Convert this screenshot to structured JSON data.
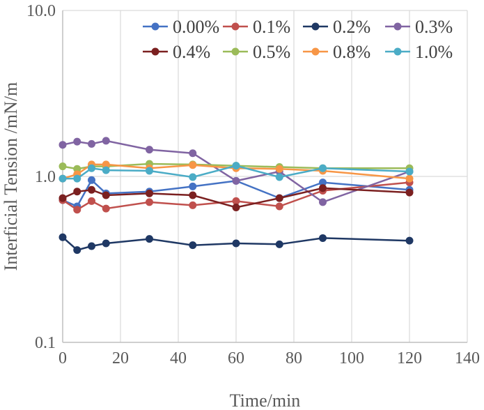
{
  "chart_data": {
    "type": "line",
    "xlabel": "Time/min",
    "ylabel": "Interficial Tension /mN/m",
    "yscale": "log",
    "xlim": [
      0,
      140
    ],
    "ylim": [
      0.1,
      10.0
    ],
    "xticks": [
      0,
      20,
      40,
      60,
      80,
      100,
      120,
      140
    ],
    "xtick_labels": [
      "0",
      "20",
      "40",
      "60",
      "80",
      "100",
      "120",
      "140"
    ],
    "yticks": [
      0.1,
      1.0,
      10.0
    ],
    "ytick_labels": [
      "0.1",
      "1.0",
      "10.0"
    ],
    "grid": "vertical",
    "legend": "top-right",
    "x": [
      0,
      5,
      10,
      15,
      30,
      45,
      60,
      75,
      90,
      120
    ],
    "series": [
      {
        "name": "0.00%",
        "color": "#4472C4",
        "values": [
          0.72,
          0.66,
          0.95,
          0.79,
          0.81,
          0.87,
          0.94,
          0.74,
          0.92,
          0.83
        ]
      },
      {
        "name": "0.1%",
        "color": "#C0504D",
        "values": [
          0.72,
          0.63,
          0.71,
          0.64,
          0.7,
          0.67,
          0.71,
          0.66,
          0.82,
          0.92
        ]
      },
      {
        "name": "0.2%",
        "color": "#1F3864",
        "values": [
          0.43,
          0.36,
          0.38,
          0.395,
          0.42,
          0.385,
          0.395,
          0.39,
          0.425,
          0.41
        ]
      },
      {
        "name": "0.3%",
        "color": "#8064A2",
        "values": [
          1.55,
          1.62,
          1.57,
          1.64,
          1.45,
          1.38,
          0.94,
          1.07,
          0.7,
          1.07
        ]
      },
      {
        "name": "0.4%",
        "color": "#7B2020",
        "values": [
          0.74,
          0.81,
          0.83,
          0.77,
          0.79,
          0.77,
          0.65,
          0.74,
          0.85,
          0.8
        ]
      },
      {
        "name": "0.5%",
        "color": "#9BBB59",
        "values": [
          1.15,
          1.11,
          1.15,
          1.15,
          1.19,
          1.18,
          1.16,
          1.14,
          1.12,
          1.12
        ]
      },
      {
        "name": "0.8%",
        "color": "#F79646",
        "values": [
          0.97,
          1.03,
          1.18,
          1.18,
          1.12,
          1.17,
          1.12,
          1.11,
          1.08,
          0.97
        ]
      },
      {
        "name": "1.0%",
        "color": "#4BACC6",
        "values": [
          0.97,
          0.97,
          1.12,
          1.09,
          1.08,
          0.99,
          1.16,
          0.99,
          1.12,
          1.07
        ]
      }
    ]
  }
}
